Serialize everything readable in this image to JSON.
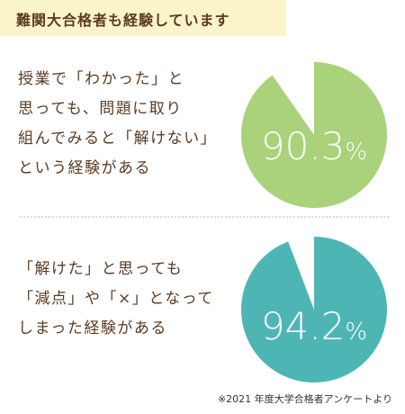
{
  "header": {
    "title": "難関大合格者も経験しています"
  },
  "blocks": [
    {
      "lines": [
        "授業で「わかった」と",
        "思っても、問題に取り",
        "組んでみると「解けない」",
        "という経験がある"
      ]
    },
    {
      "lines": [
        "「解けた」と思っても",
        "「減点」や「×」となって",
        "しまった経験がある"
      ]
    }
  ],
  "chart_data": [
    {
      "type": "pie",
      "values": [
        90.3,
        9.7
      ],
      "label": "90.3",
      "unit": "%",
      "color": "#a9d27a",
      "gap_color": "#ffffff"
    },
    {
      "type": "pie",
      "values": [
        94.2,
        5.8
      ],
      "label": "94.2",
      "unit": "%",
      "color": "#4db6b4",
      "gap_color": "#ffffff"
    }
  ],
  "footnote": "※2021 年度大学合格者アンケートより"
}
